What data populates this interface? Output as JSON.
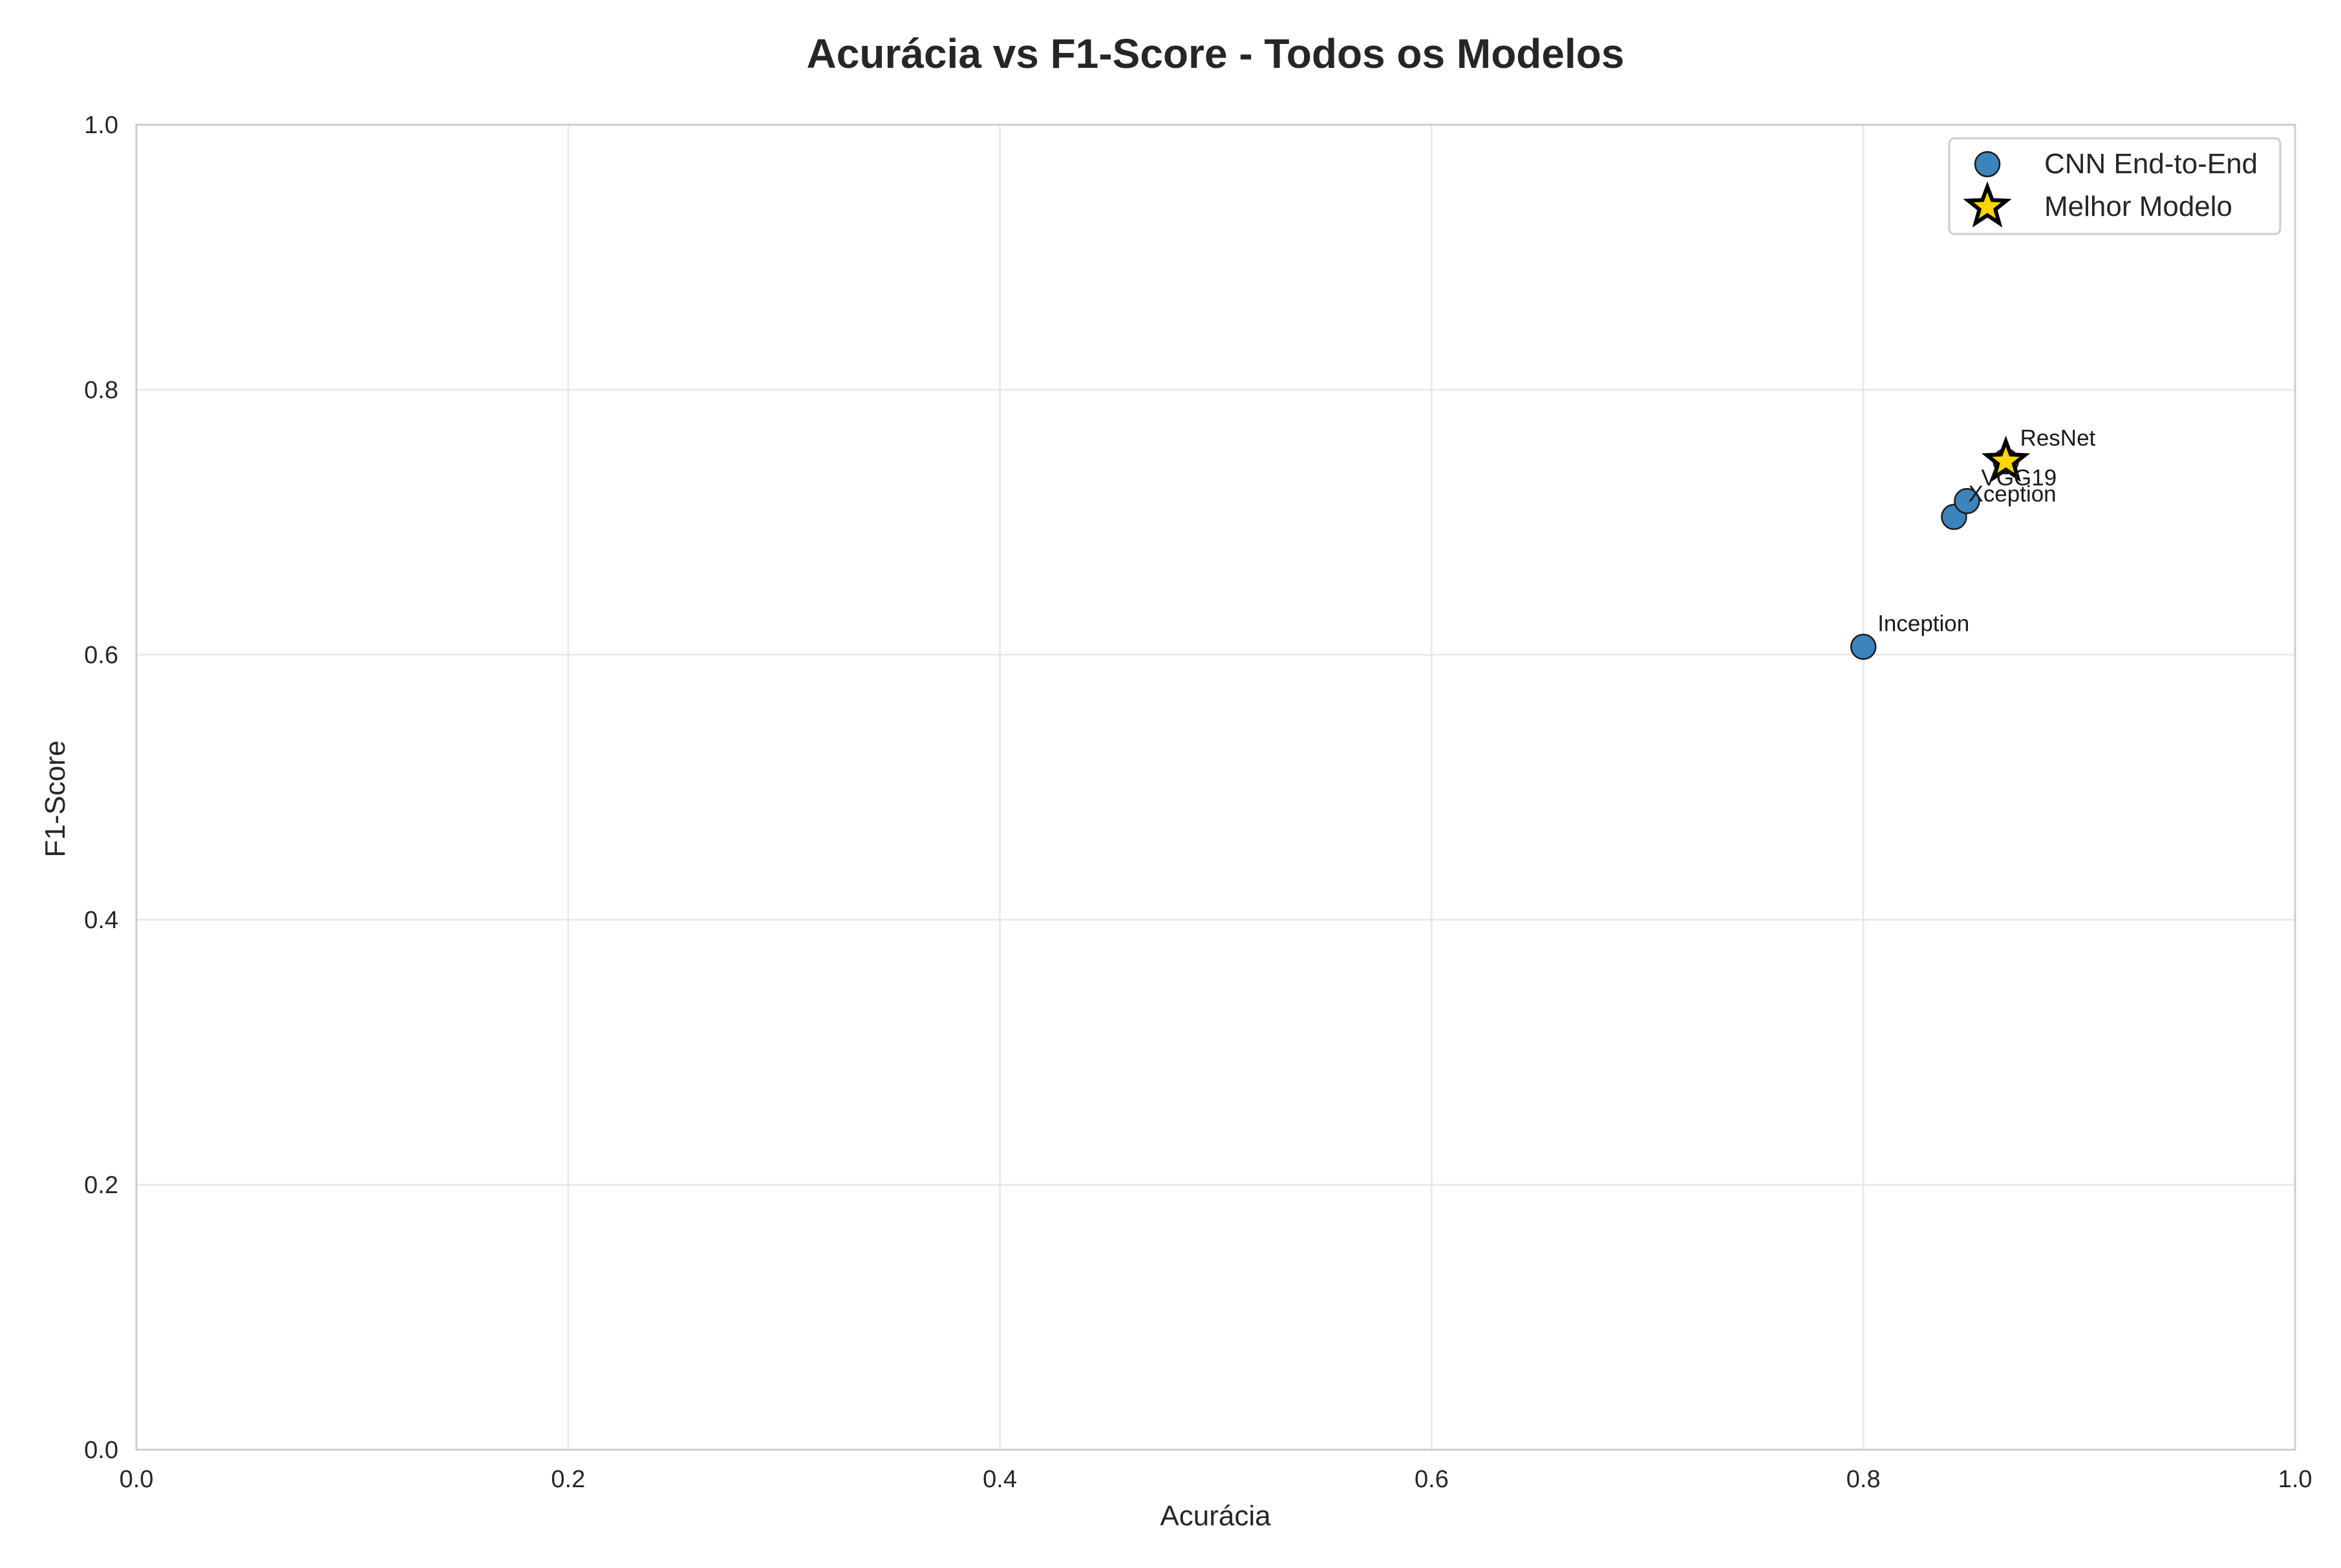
{
  "colors": {
    "background": "#ffffff",
    "grid": "#e6e6e6",
    "spine": "#cccccc",
    "text": "#262626",
    "cnn_marker_fill": "#3b84bd",
    "marker_edge": "#1a1a1a",
    "best_marker_fill": "#ffd500",
    "best_marker_edge": "#000000"
  },
  "chart_data": {
    "type": "scatter",
    "title": "Acurácia vs F1-Score - Todos os Modelos",
    "xlabel": "Acurácia",
    "ylabel": "F1-Score",
    "xlim": [
      0,
      1
    ],
    "ylim": [
      0,
      1
    ],
    "grid": true,
    "legend_position": "top-right",
    "x_ticks": [
      0.0,
      0.2,
      0.4,
      0.6,
      0.8,
      1.0
    ],
    "y_ticks": [
      0.0,
      0.2,
      0.4,
      0.6,
      0.8,
      1.0
    ],
    "x_tick_labels": [
      "0.0",
      "0.2",
      "0.4",
      "0.6",
      "0.8",
      "1.0"
    ],
    "y_tick_labels": [
      "0.0",
      "0.2",
      "0.4",
      "0.6",
      "0.8",
      "1.0"
    ],
    "series": [
      {
        "name": "CNN End-to-End",
        "marker": "circle",
        "points": [
          {
            "label": "Inception",
            "x": 0.8,
            "y": 0.606
          },
          {
            "label": "Xception",
            "x": 0.842,
            "y": 0.704
          },
          {
            "label": "VGG19",
            "x": 0.848,
            "y": 0.716
          },
          {
            "label": "ResNet",
            "x": 0.866,
            "y": 0.746
          }
        ]
      },
      {
        "name": "Melhor Modelo",
        "marker": "star",
        "points": [
          {
            "label": "",
            "x": 0.866,
            "y": 0.746
          }
        ]
      }
    ]
  }
}
